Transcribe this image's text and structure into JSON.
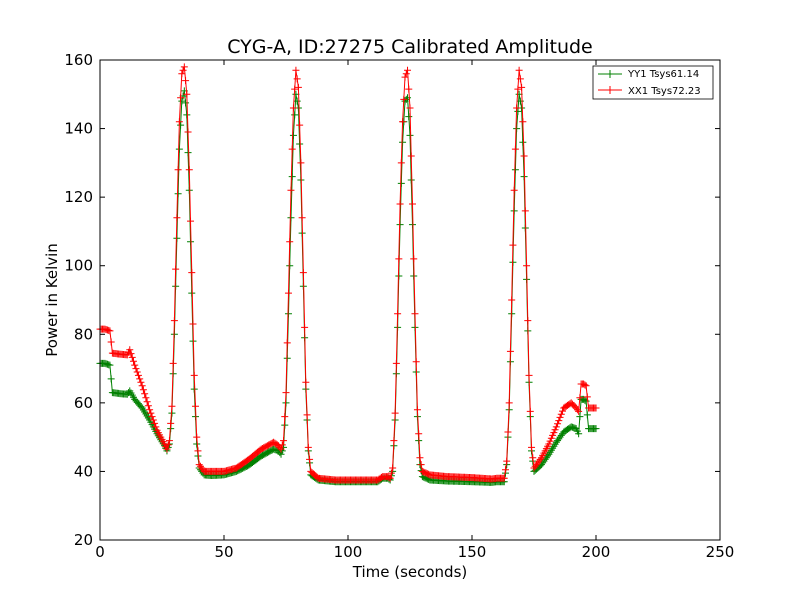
{
  "chart_data": {
    "type": "line",
    "title": "CYG-A, ID:27275 Calibrated Amplitude",
    "xlabel": "Time (seconds)",
    "ylabel": "Power in Kelvin",
    "xlim": [
      0,
      250
    ],
    "ylim": [
      20,
      160
    ],
    "xticks": [
      0,
      50,
      100,
      150,
      200,
      250
    ],
    "yticks": [
      20,
      40,
      60,
      80,
      100,
      120,
      140,
      160
    ],
    "grid": false,
    "legend_position": "top-right",
    "marker": "+",
    "series": [
      {
        "name": "YY1 Tsys61.14",
        "color": "#008000",
        "points": [
          [
            0,
            71.5
          ],
          [
            2,
            71.5
          ],
          [
            4,
            71
          ],
          [
            5,
            63
          ],
          [
            8,
            62.7
          ],
          [
            11,
            62.5
          ],
          [
            12,
            63.5
          ],
          [
            14,
            61
          ],
          [
            17,
            58.5
          ],
          [
            20,
            55
          ],
          [
            23,
            51
          ],
          [
            26,
            47.5
          ],
          [
            27,
            46
          ],
          [
            28,
            48
          ],
          [
            29,
            57
          ],
          [
            30,
            80
          ],
          [
            31,
            108
          ],
          [
            32,
            134
          ],
          [
            33,
            148
          ],
          [
            34,
            151
          ],
          [
            35,
            144
          ],
          [
            36,
            122
          ],
          [
            37,
            92
          ],
          [
            38,
            64
          ],
          [
            39,
            48
          ],
          [
            40,
            41
          ],
          [
            42,
            39
          ],
          [
            45,
            38.8
          ],
          [
            50,
            39
          ],
          [
            55,
            40
          ],
          [
            60,
            41.8
          ],
          [
            65,
            44.5
          ],
          [
            70,
            46.5
          ],
          [
            72,
            46
          ],
          [
            73,
            45
          ],
          [
            74,
            47
          ],
          [
            75,
            60
          ],
          [
            76,
            86
          ],
          [
            77,
            114
          ],
          [
            78,
            138
          ],
          [
            79,
            150
          ],
          [
            80,
            146
          ],
          [
            81,
            125
          ],
          [
            82,
            94
          ],
          [
            83,
            64
          ],
          [
            84,
            46
          ],
          [
            85,
            39
          ],
          [
            88,
            37.5
          ],
          [
            95,
            37
          ],
          [
            105,
            37
          ],
          [
            112,
            37
          ],
          [
            114,
            38
          ],
          [
            116,
            38
          ],
          [
            117,
            37.5
          ],
          [
            118,
            40
          ],
          [
            119,
            55
          ],
          [
            120,
            82
          ],
          [
            121,
            112
          ],
          [
            122,
            136
          ],
          [
            123,
            148
          ],
          [
            124,
            149
          ],
          [
            125,
            138
          ],
          [
            126,
            112
          ],
          [
            127,
            82
          ],
          [
            128,
            56
          ],
          [
            129,
            42
          ],
          [
            130,
            38.5
          ],
          [
            133,
            37.5
          ],
          [
            140,
            37.2
          ],
          [
            150,
            37
          ],
          [
            158,
            36.8
          ],
          [
            160,
            37
          ],
          [
            163,
            37
          ],
          [
            164,
            42
          ],
          [
            165,
            58
          ],
          [
            166,
            86
          ],
          [
            167,
            116
          ],
          [
            168,
            140
          ],
          [
            169,
            150
          ],
          [
            170,
            146
          ],
          [
            171,
            126
          ],
          [
            172,
            96
          ],
          [
            173,
            66
          ],
          [
            174,
            46
          ],
          [
            175,
            40
          ],
          [
            178,
            42
          ],
          [
            181,
            45
          ],
          [
            184,
            48.5
          ],
          [
            187,
            51.5
          ],
          [
            190,
            53
          ],
          [
            192,
            52.5
          ],
          [
            193,
            51
          ],
          [
            194,
            61
          ],
          [
            195,
            61
          ],
          [
            196,
            60.5
          ],
          [
            197,
            52.5
          ],
          [
            200,
            52.5
          ]
        ]
      },
      {
        "name": "XX1 Tsys72.23",
        "color": "#ff0000",
        "points": [
          [
            0,
            81.5
          ],
          [
            2,
            81.5
          ],
          [
            4,
            81
          ],
          [
            5,
            74.5
          ],
          [
            8,
            74.2
          ],
          [
            11,
            74
          ],
          [
            12,
            75.5
          ],
          [
            14,
            71
          ],
          [
            17,
            65
          ],
          [
            20,
            58
          ],
          [
            23,
            52
          ],
          [
            26,
            48
          ],
          [
            27,
            46.5
          ],
          [
            28,
            49
          ],
          [
            29,
            59
          ],
          [
            30,
            84
          ],
          [
            31,
            114
          ],
          [
            32,
            142
          ],
          [
            33,
            156
          ],
          [
            34,
            158
          ],
          [
            35,
            150
          ],
          [
            36,
            128
          ],
          [
            37,
            98
          ],
          [
            38,
            68
          ],
          [
            39,
            50
          ],
          [
            40,
            42
          ],
          [
            42,
            40
          ],
          [
            45,
            40
          ],
          [
            50,
            40
          ],
          [
            55,
            41
          ],
          [
            60,
            43.5
          ],
          [
            65,
            46.5
          ],
          [
            70,
            48.5
          ],
          [
            72,
            47.5
          ],
          [
            73,
            46.5
          ],
          [
            74,
            49
          ],
          [
            75,
            63
          ],
          [
            76,
            92
          ],
          [
            77,
            122
          ],
          [
            78,
            146
          ],
          [
            79,
            157
          ],
          [
            80,
            152
          ],
          [
            81,
            130
          ],
          [
            82,
            98
          ],
          [
            83,
            66
          ],
          [
            84,
            47
          ],
          [
            85,
            40
          ],
          [
            88,
            38
          ],
          [
            95,
            37.5
          ],
          [
            105,
            37.5
          ],
          [
            112,
            37.5
          ],
          [
            114,
            38.5
          ],
          [
            116,
            38.5
          ],
          [
            117,
            38
          ],
          [
            118,
            41
          ],
          [
            119,
            57
          ],
          [
            120,
            86
          ],
          [
            121,
            118
          ],
          [
            122,
            142
          ],
          [
            123,
            155
          ],
          [
            124,
            157
          ],
          [
            125,
            146
          ],
          [
            126,
            118
          ],
          [
            127,
            86
          ],
          [
            128,
            58
          ],
          [
            129,
            44
          ],
          [
            130,
            40
          ],
          [
            133,
            39
          ],
          [
            140,
            38.5
          ],
          [
            150,
            38.2
          ],
          [
            158,
            37.8
          ],
          [
            160,
            38
          ],
          [
            163,
            38
          ],
          [
            164,
            43
          ],
          [
            165,
            60
          ],
          [
            166,
            90
          ],
          [
            167,
            122
          ],
          [
            168,
            146
          ],
          [
            169,
            157
          ],
          [
            170,
            152
          ],
          [
            171,
            132
          ],
          [
            172,
            100
          ],
          [
            173,
            68
          ],
          [
            174,
            47
          ],
          [
            175,
            41
          ],
          [
            178,
            44
          ],
          [
            181,
            48
          ],
          [
            184,
            53
          ],
          [
            187,
            58.5
          ],
          [
            190,
            60
          ],
          [
            192,
            58.5
          ],
          [
            193,
            57.5
          ],
          [
            194,
            65.5
          ],
          [
            195,
            65.5
          ],
          [
            196,
            65
          ],
          [
            197,
            58.5
          ],
          [
            200,
            58.5
          ]
        ]
      }
    ]
  }
}
